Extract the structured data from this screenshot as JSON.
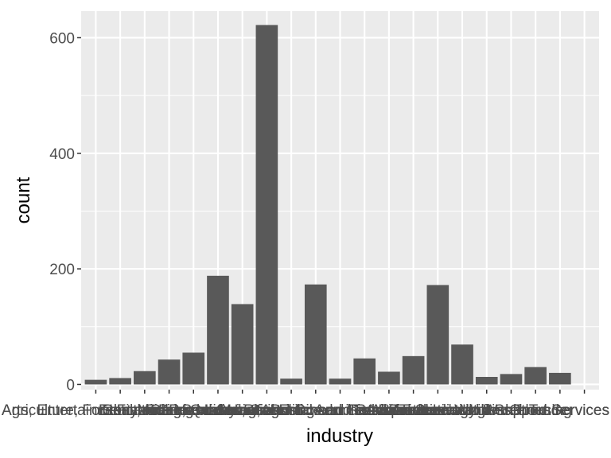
{
  "chart_data": {
    "type": "bar",
    "xlabel": "industry",
    "ylabel": "count",
    "ylim": [
      -9,
      646
    ],
    "yticks": [
      0,
      200,
      400,
      600
    ],
    "grid": true,
    "colors": {
      "panel": "#ebebeb",
      "grid": "#ffffff",
      "bar": "#595959",
      "tick": "#333333",
      "tick_label": "#4d4d4d"
    },
    "categories": [
      "Agriculture, Forestry, Fishing and Hunting",
      "Arts, Entertainment, and Recreation",
      "Construction",
      "Educational Services",
      "Finance and Insurance",
      "Health Care and Social Assistance",
      "Information",
      "Manufacturing",
      "Mining, Quarrying, and Oil and Gas Extraction",
      "Professional, Scientific, and Technical Services",
      "Public Administration",
      "Real Estate and Rental and Leasing",
      "Retail Trade",
      "Service",
      "Technology",
      "Transportation and Warehousing",
      "Utilities",
      "Wholesale Trade",
      "Accommodation and Food Services",
      "Other Services",
      "Administrative and Support Services"
    ],
    "values": [
      8,
      11,
      23,
      43,
      55,
      188,
      139,
      622,
      10,
      173,
      10,
      45,
      22,
      49,
      172,
      69,
      13,
      18,
      30,
      20,
      0
    ]
  }
}
